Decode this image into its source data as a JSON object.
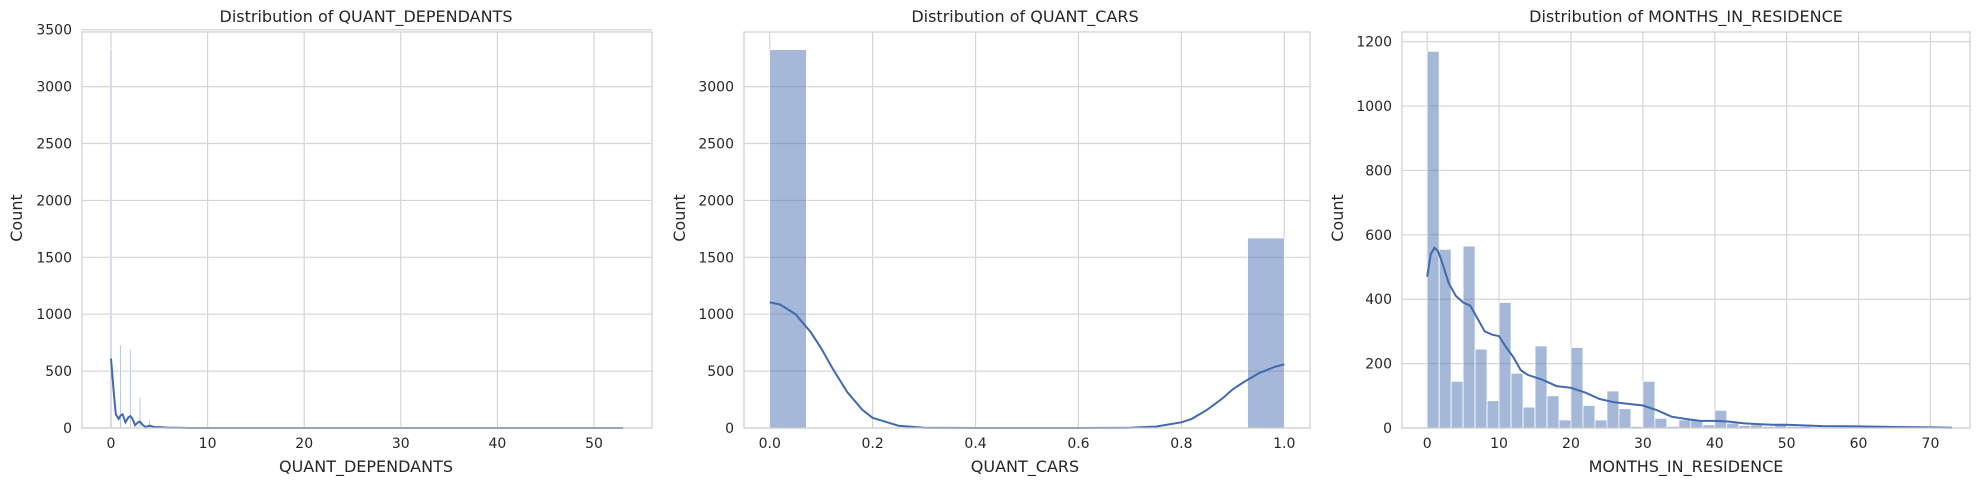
{
  "chart_data": [
    {
      "type": "bar",
      "title": "Distribution of QUANT_DEPENDANTS",
      "xlabel": "QUANT_DEPENDANTS",
      "ylabel": "Count",
      "xlim": [
        -3,
        56
      ],
      "ylim": [
        0,
        3480
      ],
      "xticks": [
        0,
        10,
        20,
        30,
        40,
        50
      ],
      "yticks": [
        0,
        500,
        1000,
        1500,
        2000,
        2500,
        3000,
        3500
      ],
      "bin_width": 0.16,
      "bars": [
        {
          "x": 0,
          "count": 3330
        },
        {
          "x": 1,
          "count": 730
        },
        {
          "x": 2,
          "count": 690
        },
        {
          "x": 3,
          "count": 270
        },
        {
          "x": 4,
          "count": 70
        },
        {
          "x": 5,
          "count": 20
        },
        {
          "x": 6,
          "count": 8
        }
      ],
      "kde": {
        "x": [
          0,
          0.3,
          0.5,
          0.8,
          1,
          1.2,
          1.5,
          1.8,
          2,
          2.2,
          2.5,
          2.8,
          3,
          3.3,
          3.6,
          4,
          4.5,
          5,
          6,
          7,
          8,
          10,
          53
        ],
        "y": [
          610,
          300,
          120,
          80,
          110,
          120,
          50,
          95,
          105,
          85,
          25,
          50,
          55,
          25,
          10,
          20,
          8,
          8,
          3,
          2,
          0,
          0,
          0
        ]
      }
    },
    {
      "type": "bar",
      "title": "Distribution of QUANT_CARS",
      "xlabel": "QUANT_CARS",
      "ylabel": "Count",
      "xlim": [
        -0.05,
        1.05
      ],
      "ylim": [
        0,
        3480
      ],
      "xticks": [
        "0.0",
        "0.2",
        "0.4",
        "0.6",
        "0.8",
        "1.0"
      ],
      "yticks": [
        0,
        500,
        1000,
        1500,
        2000,
        2500,
        3000
      ],
      "bars": [
        {
          "x0": 0.0,
          "x1": 0.0714,
          "count": 3325
        },
        {
          "x0": 0.9286,
          "x1": 1.0,
          "count": 1670
        }
      ],
      "kde": {
        "x": [
          0,
          0.02,
          0.05,
          0.08,
          0.1,
          0.12,
          0.15,
          0.18,
          0.2,
          0.25,
          0.3,
          0.4,
          0.5,
          0.6,
          0.7,
          0.75,
          0.8,
          0.82,
          0.85,
          0.88,
          0.9,
          0.92,
          0.95,
          0.98,
          1.0
        ],
        "y": [
          1105,
          1085,
          1000,
          840,
          700,
          540,
          320,
          160,
          90,
          20,
          3,
          0,
          0,
          0,
          3,
          12,
          50,
          80,
          160,
          260,
          340,
          400,
          480,
          535,
          560
        ]
      }
    },
    {
      "type": "bar",
      "title": "Distribution of MONTHS_IN_RESIDENCE",
      "xlabel": "MONTHS_IN_RESIDENCE",
      "ylabel": "Count",
      "xlim": [
        -3.5,
        75.5
      ],
      "ylim": [
        0,
        1230
      ],
      "xticks": [
        0,
        10,
        20,
        30,
        40,
        50,
        60,
        70
      ],
      "yticks": [
        0,
        200,
        400,
        600,
        800,
        1000,
        1200
      ],
      "bin_width": 1.667,
      "counts": [
        1170,
        555,
        145,
        565,
        245,
        85,
        390,
        170,
        65,
        255,
        100,
        25,
        250,
        70,
        25,
        115,
        60,
        5,
        145,
        30,
        5,
        25,
        25,
        10,
        55,
        15,
        8,
        10,
        5,
        10,
        5,
        5,
        3,
        3,
        3,
        3,
        3,
        3,
        3,
        3,
        2,
        2,
        2,
        2
      ],
      "kde": {
        "x": [
          0,
          0.5,
          1,
          1.5,
          2,
          3,
          4,
          5,
          6,
          7,
          8,
          9,
          10,
          11,
          12,
          13,
          14,
          16,
          18,
          20,
          22,
          24,
          26,
          28,
          30,
          32,
          34,
          36,
          38,
          40,
          42,
          44,
          46,
          48,
          50,
          55,
          60,
          65,
          70,
          73
        ],
        "y": [
          470,
          540,
          560,
          550,
          520,
          450,
          410,
          390,
          380,
          340,
          300,
          290,
          285,
          250,
          220,
          180,
          165,
          150,
          130,
          125,
          110,
          90,
          80,
          75,
          70,
          55,
          35,
          28,
          22,
          22,
          20,
          15,
          12,
          10,
          10,
          6,
          5,
          3,
          2,
          1
        ]
      }
    }
  ]
}
